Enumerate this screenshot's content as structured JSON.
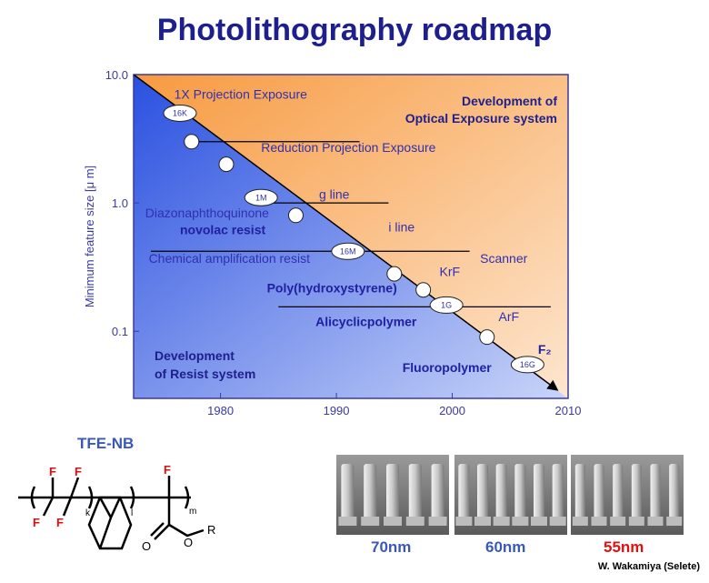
{
  "title": "Photolithography roadmap",
  "chart_data": {
    "type": "line",
    "title": "Photolithography roadmap",
    "ylabel": "Minimum feature size [μ m]",
    "xlabel": "",
    "ytick_labels": [
      "10.0",
      "1.0",
      "0.1"
    ],
    "xtick_labels": [
      "1980",
      "1990",
      "2000",
      "2010"
    ],
    "xlim": [
      1972.5,
      2010
    ],
    "ylim": [
      0.03,
      10
    ],
    "y_scale": "log",
    "series": [
      {
        "points": [
          {
            "x": 1976.5,
            "y": 5.0,
            "label": "16K"
          },
          {
            "x": 1977.5,
            "y": 3.0
          },
          {
            "x": 1980.5,
            "y": 2.0
          },
          {
            "x": 1983.5,
            "y": 1.1,
            "label": "1M"
          },
          {
            "x": 1986.5,
            "y": 0.8
          },
          {
            "x": 1991.0,
            "y": 0.42,
            "label": "16M"
          },
          {
            "x": 1995.0,
            "y": 0.28
          },
          {
            "x": 1997.5,
            "y": 0.21
          },
          {
            "x": 1999.5,
            "y": 0.16,
            "label": "1G"
          },
          {
            "x": 2003.0,
            "y": 0.09
          },
          {
            "x": 2006.5,
            "y": 0.055,
            "label": "16G"
          }
        ]
      }
    ],
    "region_labels": {
      "upper": [
        "Development of",
        "Optical Exposure system"
      ],
      "lower": [
        "Development",
        "of Resist system"
      ]
    },
    "annotations": [
      {
        "text": "1X Projection Exposure",
        "x": 1976.0,
        "y": 6.5
      },
      {
        "text": "Reduction Projection Exposure",
        "x": 1983.5,
        "y": 2.5
      },
      {
        "text": "g line",
        "x": 1988.5,
        "y": 1.08
      },
      {
        "text": "Diazonaphthoquinone",
        "x": 1973.5,
        "y": 0.77
      },
      {
        "text": "novolac resist",
        "x": 1976.5,
        "y": 0.57,
        "bold": true
      },
      {
        "text": "i line",
        "x": 1994.5,
        "y": 0.6
      },
      {
        "text": "Chemical amplification resist",
        "x": 1973.8,
        "y": 0.34
      },
      {
        "text": "KrF",
        "x": 1998.9,
        "y": 0.27
      },
      {
        "text": "Scanner",
        "x": 2002.4,
        "y": 0.34
      },
      {
        "text": "Poly(hydroxystyrene)",
        "x": 1984.0,
        "y": 0.2,
        "bold": true
      },
      {
        "text": "ArF",
        "x": 2004.0,
        "y": 0.12
      },
      {
        "text": "Alicyclicpolymer",
        "x": 1988.2,
        "y": 0.11,
        "bold": true
      },
      {
        "text": "Fluoropolymer",
        "x": 1995.7,
        "y": 0.048,
        "bold": true
      },
      {
        "text": "F₂",
        "x": 2007.4,
        "y": 0.067,
        "bold": true
      }
    ],
    "node_lines": [
      {
        "x1": 1977.5,
        "x2": 1992.0,
        "y": 3.0
      },
      {
        "x1": 1983.5,
        "x2": 1994.5,
        "y": 1.0
      },
      {
        "x1": 1974.0,
        "x2": 2001.5,
        "y": 0.42
      },
      {
        "x1": 1985.0,
        "x2": 2008.5,
        "y": 0.155
      }
    ]
  },
  "structure": {
    "name": "TFE-NB",
    "atoms_F": [
      "F",
      "F",
      "F",
      "F",
      "F"
    ],
    "subscripts": [
      "k",
      "l",
      "m"
    ],
    "atoms_O": [
      "O",
      "O"
    ],
    "atom_R": "R"
  },
  "sem": [
    {
      "label": "70nm",
      "color": "#3a58b8"
    },
    {
      "label": "60nm",
      "color": "#3a58b8"
    },
    {
      "label": "55nm",
      "color": "#e01010"
    }
  ],
  "credit": "W. Wakamiya (Selete)"
}
